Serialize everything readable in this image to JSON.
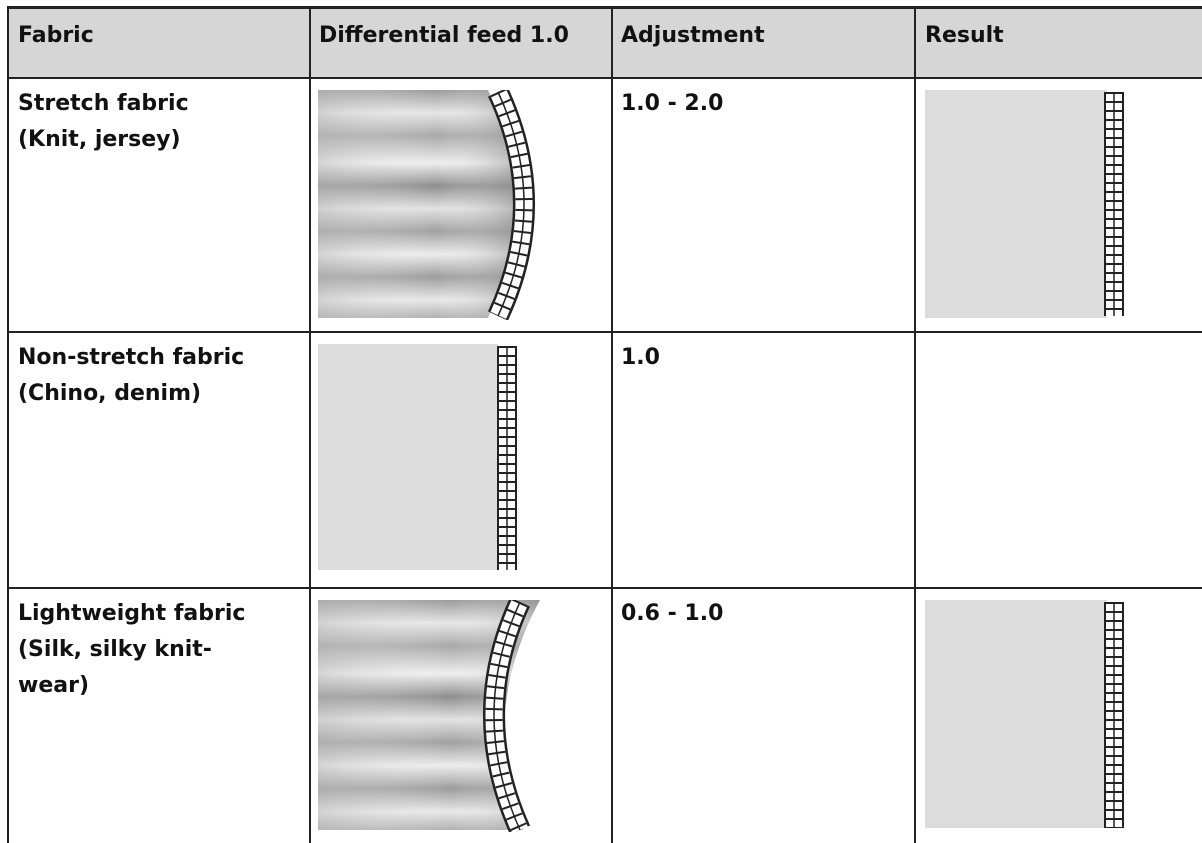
{
  "table": {
    "header": [
      "Fabric",
      "Differential feed 1.0",
      "Adjustment",
      "Result"
    ],
    "rows": [
      {
        "fabric": [
          "Stretch fabric",
          "(Knit, jersey)"
        ],
        "adjustment": "1.0 - 2.0"
      },
      {
        "fabric": [
          "Non-stretch fabric",
          "(Chino, denim)"
        ],
        "adjustment": "1.0"
      },
      {
        "fabric": [
          "Lightweight fabric",
          "(Silk, silky knit-",
          "wear)"
        ],
        "adjustment": "0.6 - 1.0"
      }
    ]
  }
}
